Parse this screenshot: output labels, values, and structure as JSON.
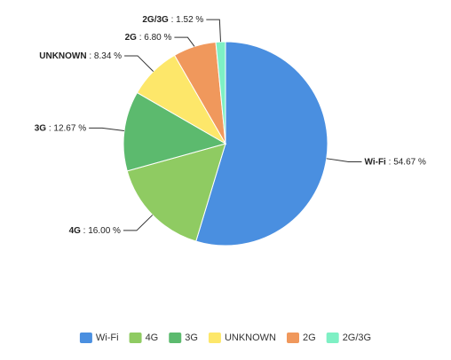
{
  "chart_data": {
    "type": "pie",
    "categories": [
      "Wi-Fi",
      "4G",
      "3G",
      "UNKNOWN",
      "2G",
      "2G/3G"
    ],
    "values": [
      54.67,
      16.0,
      12.67,
      8.34,
      6.8,
      1.52
    ],
    "value_labels": [
      "54.67 %",
      "16.00 %",
      "12.67 %",
      "8.34 %",
      "6.80 %",
      "1.52 %"
    ],
    "colors": [
      "#4a8fe0",
      "#8fcb62",
      "#5cba6e",
      "#fde76a",
      "#f0985c",
      "#7ef0c4"
    ],
    "legend": "bottom"
  }
}
